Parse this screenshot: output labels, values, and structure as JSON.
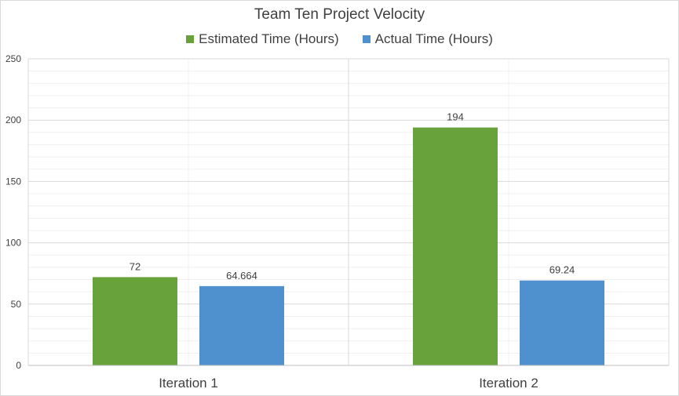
{
  "chart_data": {
    "type": "bar",
    "title": "Team Ten Project Velocity",
    "categories": [
      "Iteration 1",
      "Iteration 2"
    ],
    "series": [
      {
        "name": "Estimated Time (Hours)",
        "values": [
          72,
          194
        ],
        "labels": [
          "72",
          "194"
        ],
        "color": "#67a23b"
      },
      {
        "name": "Actual Time (Hours)",
        "values": [
          64.664,
          69.24
        ],
        "labels": [
          "64.664",
          "69.24"
        ],
        "color": "#4f90cf"
      }
    ],
    "ylim": [
      0,
      250
    ],
    "yticks": [
      "0",
      "50",
      "100",
      "150",
      "200",
      "250"
    ],
    "grid": true,
    "legend_position": "top"
  }
}
